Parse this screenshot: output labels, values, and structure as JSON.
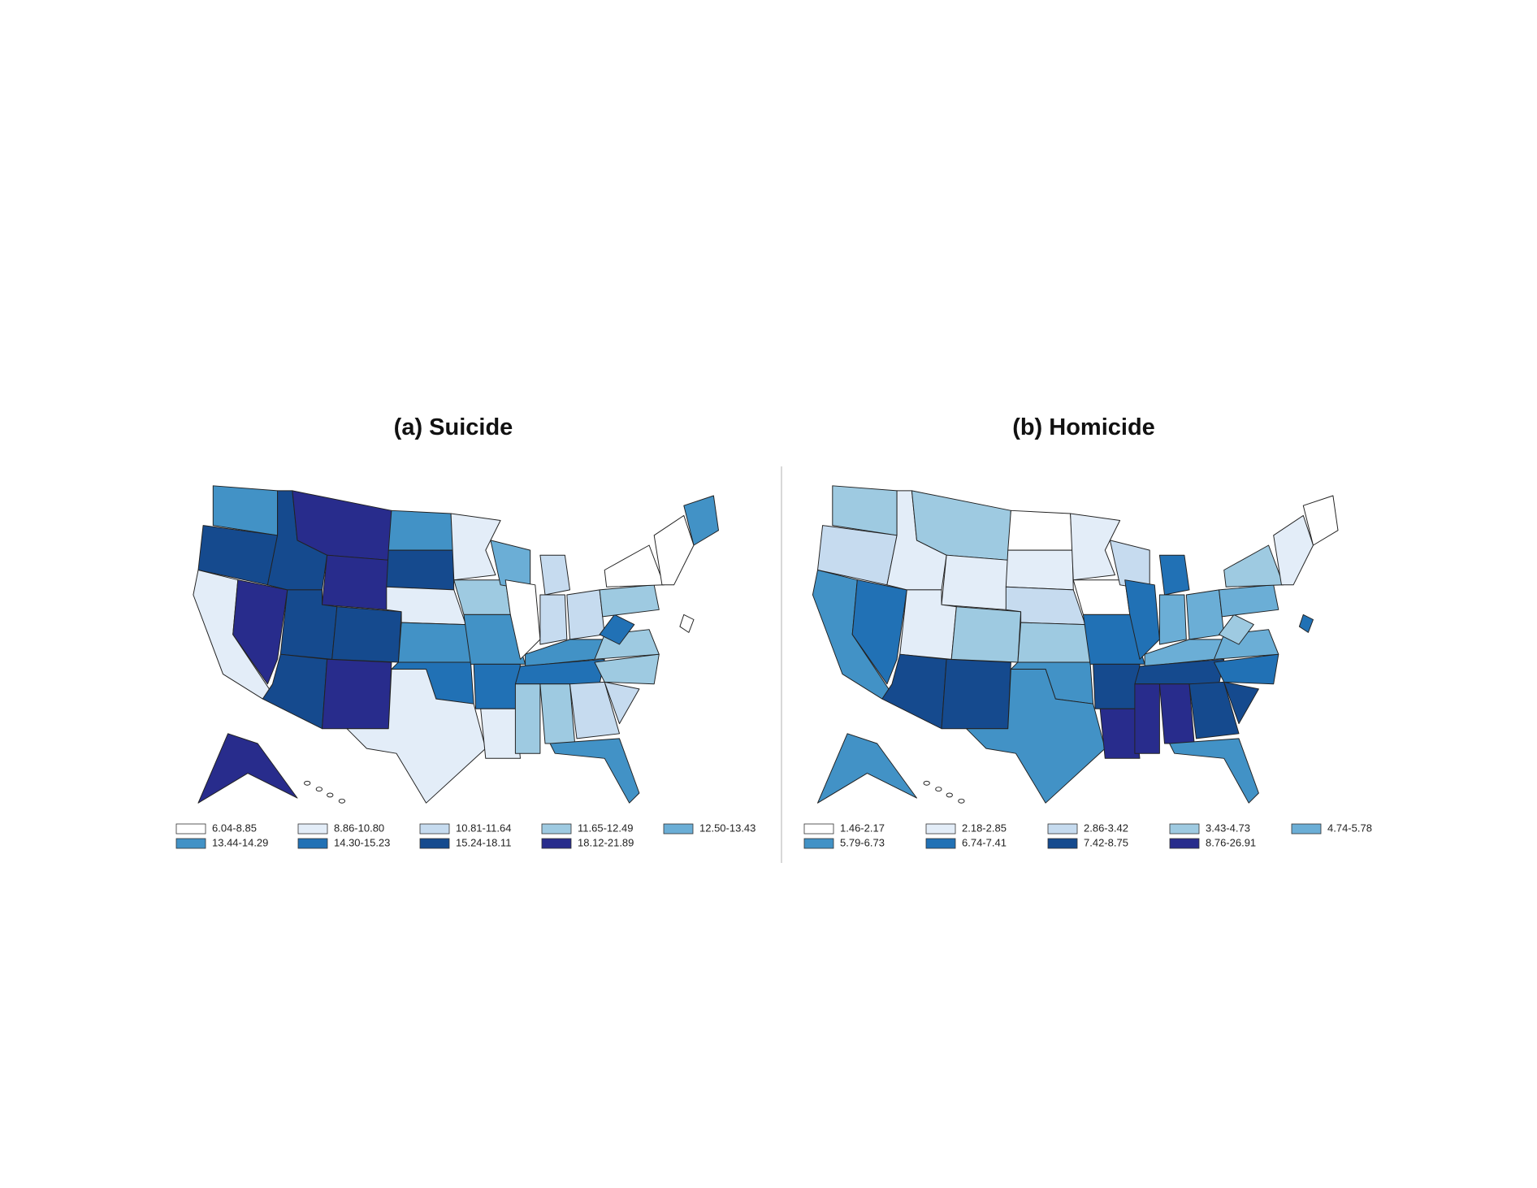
{
  "panels": [
    {
      "title": "(a) Suicide",
      "legend": [
        {
          "label": "6.04-8.85",
          "color": "#ffffff"
        },
        {
          "label": "8.86-10.80",
          "color": "#e3edf8"
        },
        {
          "label": "10.81-11.64",
          "color": "#c6dbef"
        },
        {
          "label": "11.65-12.49",
          "color": "#9ecae1"
        },
        {
          "label": "12.50-13.43",
          "color": "#6baed6"
        },
        {
          "label": "13.44-14.29",
          "color": "#4292c6"
        },
        {
          "label": "14.30-15.23",
          "color": "#2171b5"
        },
        {
          "label": "15.24-18.11",
          "color": "#154a8e"
        },
        {
          "label": "18.12-21.89",
          "color": "#282c8c"
        }
      ]
    },
    {
      "title": "(b) Homicide",
      "legend": [
        {
          "label": "1.46-2.17",
          "color": "#ffffff"
        },
        {
          "label": "2.18-2.85",
          "color": "#e3edf8"
        },
        {
          "label": "2.86-3.42",
          "color": "#c6dbef"
        },
        {
          "label": "3.43-4.73",
          "color": "#9ecae1"
        },
        {
          "label": "4.74-5.78",
          "color": "#6baed6"
        },
        {
          "label": "5.79-6.73",
          "color": "#4292c6"
        },
        {
          "label": "6.74-7.41",
          "color": "#2171b5"
        },
        {
          "label": "7.42-8.75",
          "color": "#154a8e"
        },
        {
          "label": "8.76-26.91",
          "color": "#282c8c"
        }
      ]
    }
  ]
}
